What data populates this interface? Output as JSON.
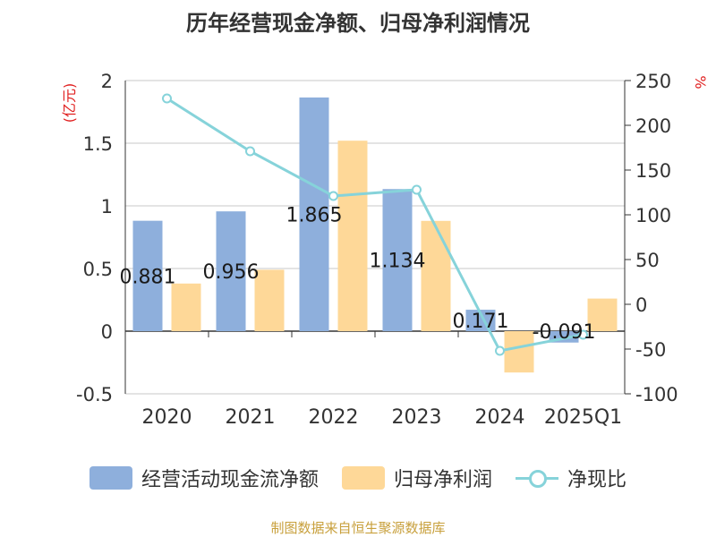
{
  "title": "历年经营现金净额、归母净利润情况",
  "source": "制图数据来自恒生聚源数据库",
  "chart_data": {
    "type": "bar",
    "categories": [
      "2020",
      "2021",
      "2022",
      "2023",
      "2024",
      "2025Q1"
    ],
    "series": [
      {
        "name": "经营活动现金流净额",
        "kind": "bar",
        "axis": "left",
        "color": "#8eafdc",
        "values": [
          0.881,
          0.956,
          1.865,
          1.134,
          0.171,
          -0.091
        ],
        "labels": [
          "0.881",
          "0.956",
          "1.865",
          "1.134",
          "0.171",
          "-0.091"
        ]
      },
      {
        "name": "归母净利润",
        "kind": "bar",
        "axis": "left",
        "color": "#fed898",
        "values": [
          0.38,
          0.49,
          1.52,
          0.88,
          -0.33,
          0.26
        ]
      },
      {
        "name": "净现比",
        "kind": "line",
        "axis": "right",
        "color": "#86d3da",
        "values": [
          230,
          171,
          121,
          128,
          -52,
          -34
        ]
      }
    ],
    "y_left": {
      "unit": "(亿元)",
      "ylim": [
        -0.5,
        2
      ],
      "ticks": [
        -0.5,
        0,
        0.5,
        1,
        1.5,
        2
      ],
      "tick_labels": [
        "-0.5",
        "0",
        "0.5",
        "1",
        "1.5",
        "2"
      ]
    },
    "y_right": {
      "unit": "%",
      "ylim": [
        -100,
        250
      ],
      "ticks": [
        -100,
        -50,
        0,
        50,
        100,
        150,
        200,
        250
      ],
      "tick_labels": [
        "-100",
        "-50",
        "0",
        "50",
        "100",
        "150",
        "200",
        "250"
      ]
    },
    "grid": true,
    "legend": "bottom"
  }
}
